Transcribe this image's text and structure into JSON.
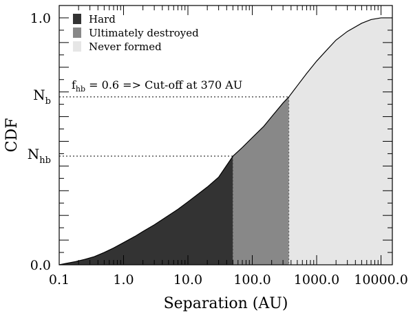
{
  "chart_data": {
    "type": "area",
    "xlabel": "Separation (AU)",
    "ylabel": "CDF",
    "xscale": "log",
    "xlim": [
      0.1,
      15000
    ],
    "ylim": [
      0.0,
      1.05
    ],
    "xticks": [
      {
        "value": 0.1,
        "label": "0.1"
      },
      {
        "value": 1,
        "label": "1.0"
      },
      {
        "value": 10,
        "label": "10.0"
      },
      {
        "value": 100,
        "label": "100.0"
      },
      {
        "value": 1000,
        "label": "1000.0"
      },
      {
        "value": 10000,
        "label": "10000.0"
      }
    ],
    "yticks": [
      {
        "value": 0.0,
        "label": "0.0"
      },
      {
        "value": 1.0,
        "label": "1.0"
      }
    ],
    "ymarkers": [
      {
        "label": "N",
        "sub": "b",
        "value": 0.68
      },
      {
        "label": "N",
        "sub": "hb",
        "value": 0.44
      }
    ],
    "curve": {
      "x": [
        0.1,
        0.13,
        0.18,
        0.25,
        0.35,
        0.5,
        0.7,
        1.0,
        1.5,
        2,
        3,
        5,
        7,
        10,
        15,
        20,
        30,
        50,
        70,
        100,
        150,
        200,
        300,
        370,
        500,
        700,
        1000,
        1500,
        2000,
        3000,
        5000,
        7000,
        10000,
        12000,
        15000
      ],
      "y": [
        0.0,
        0.006,
        0.013,
        0.022,
        0.033,
        0.05,
        0.068,
        0.09,
        0.115,
        0.135,
        0.162,
        0.2,
        0.225,
        0.255,
        0.29,
        0.315,
        0.355,
        0.44,
        0.475,
        0.515,
        0.56,
        0.6,
        0.655,
        0.68,
        0.725,
        0.775,
        0.825,
        0.875,
        0.91,
        0.945,
        0.978,
        0.993,
        1.0,
        1.0,
        1.0
      ]
    },
    "regions": [
      {
        "name": "Hard",
        "from": 0.1,
        "to": 50,
        "color": "#333333"
      },
      {
        "name": "Ultimately destroyed",
        "from": 50,
        "to": 370,
        "color": "#888888"
      },
      {
        "name": "Never formed",
        "from": 370,
        "to": 15000,
        "color": "#e6e6e6"
      }
    ],
    "guides": [
      {
        "y": 0.68,
        "x_end": 370
      },
      {
        "y": 0.44,
        "x_end": 50
      }
    ],
    "annotation": {
      "prefix": "f",
      "sub": "hb",
      "rest": " = 0.6 => Cut-off at 370 AU"
    },
    "legend": {
      "position": "top-left"
    }
  }
}
